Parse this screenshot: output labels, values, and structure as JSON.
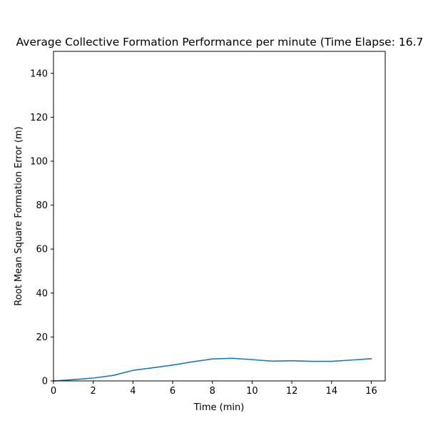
{
  "chart_data": {
    "type": "line",
    "title": "Average Collective Formation Performance per minute (Time Elapse: 16.7",
    "xlabel": "Time (min)",
    "ylabel": "Root Mean Square Formation Error (m)",
    "xlim": [
      0,
      16.7
    ],
    "ylim": [
      0,
      150
    ],
    "xticks": [
      "0",
      "2",
      "4",
      "6",
      "8",
      "10",
      "12",
      "14",
      "16"
    ],
    "yticks": [
      "0",
      "20",
      "40",
      "60",
      "80",
      "100",
      "120",
      "140"
    ],
    "grid": false,
    "series": [
      {
        "color": "#1f77b4",
        "x": [
          0,
          1,
          2,
          3,
          4,
          5,
          6,
          7,
          8,
          9,
          10,
          11,
          12,
          13,
          14,
          15,
          16
        ],
        "y": [
          0,
          0.6,
          1.3,
          2.5,
          4.8,
          6.0,
          7.2,
          8.7,
          10.0,
          10.3,
          9.7,
          9.0,
          9.2,
          8.9,
          8.9,
          9.5,
          10.1
        ]
      }
    ]
  }
}
